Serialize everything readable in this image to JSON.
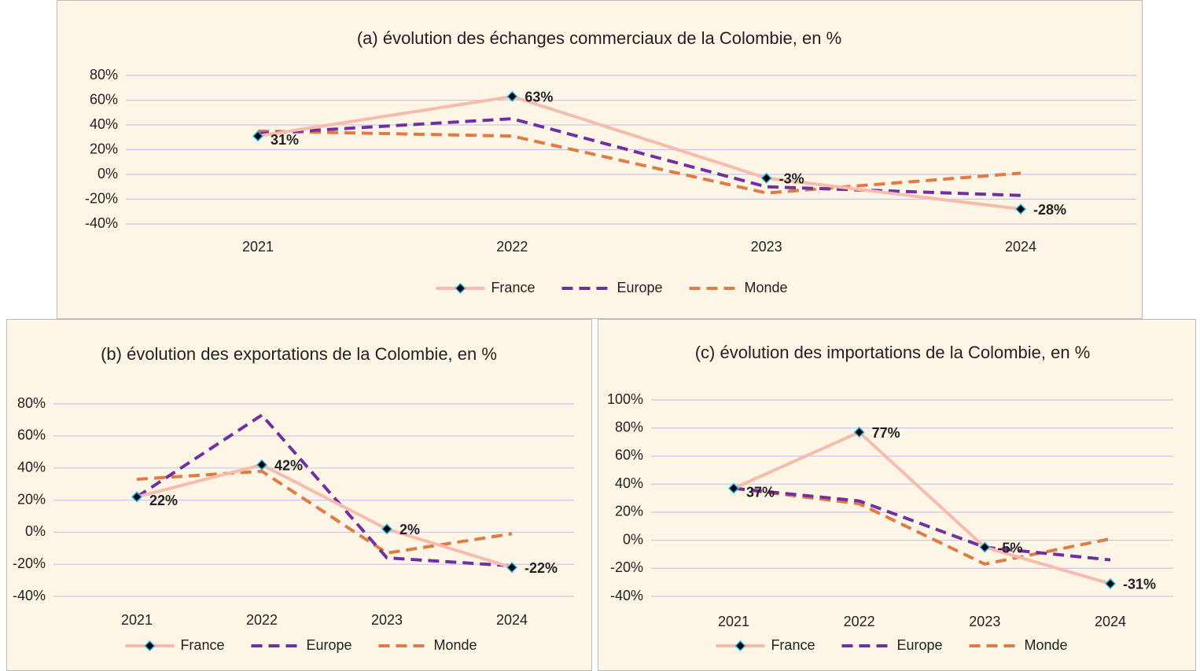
{
  "chart_data": [
    {
      "type": "line",
      "title": "(a) évolution des échanges commerciaux de la Colombie, en %",
      "categories": [
        "2021",
        "2022",
        "2023",
        "2024"
      ],
      "series": [
        {
          "name": "France",
          "color": "#f7bcae",
          "values": [
            31,
            63,
            -3,
            -28
          ],
          "value_labels": [
            "31%",
            "63%",
            "-3%",
            "-28%"
          ]
        },
        {
          "name": "Europe",
          "color": "#7030a0",
          "values": [
            33,
            45,
            -10,
            -17
          ]
        },
        {
          "name": "Monde",
          "color": "#e07b45",
          "values": [
            35,
            31,
            -15,
            1
          ]
        }
      ],
      "ylim": [
        -40,
        80
      ],
      "yticks": [
        {
          "value": -40,
          "label": "-40%"
        },
        {
          "value": -20,
          "label": "-20%"
        },
        {
          "value": 0,
          "label": "0%"
        },
        {
          "value": 20,
          "label": "20%"
        },
        {
          "value": 40,
          "label": "40%"
        },
        {
          "value": 60,
          "label": "60%"
        },
        {
          "value": 80,
          "label": "80%"
        }
      ],
      "grid": true,
      "legend": "bottom"
    },
    {
      "type": "line",
      "title": "(b) évolution des exportations de la Colombie, en %",
      "categories": [
        "2021",
        "2022",
        "2023",
        "2024"
      ],
      "series": [
        {
          "name": "France",
          "color": "#f7bcae",
          "values": [
            22,
            42,
            2,
            -22
          ],
          "value_labels": [
            "22%",
            "42%",
            "2%",
            "-22%"
          ]
        },
        {
          "name": "Europe",
          "color": "#7030a0",
          "values": [
            22,
            73,
            -16,
            -21
          ]
        },
        {
          "name": "Monde",
          "color": "#e07b45",
          "values": [
            33,
            38,
            -13,
            -1
          ]
        }
      ],
      "ylim": [
        -40,
        80
      ],
      "yticks": [
        {
          "value": -40,
          "label": "-40%"
        },
        {
          "value": -20,
          "label": "-20%"
        },
        {
          "value": 0,
          "label": "0%"
        },
        {
          "value": 20,
          "label": "20%"
        },
        {
          "value": 40,
          "label": "40%"
        },
        {
          "value": 60,
          "label": "60%"
        },
        {
          "value": 80,
          "label": "80%"
        }
      ],
      "grid": true,
      "legend": "bottom"
    },
    {
      "type": "line",
      "title": "(c) évolution des importations de la Colombie, en %",
      "categories": [
        "2021",
        "2022",
        "2023",
        "2024"
      ],
      "series": [
        {
          "name": "France",
          "color": "#f7bcae",
          "values": [
            37,
            77,
            -5,
            -31
          ],
          "value_labels": [
            "37%",
            "77%",
            "-5%",
            "-31%"
          ]
        },
        {
          "name": "Europe",
          "color": "#7030a0",
          "values": [
            37,
            28,
            -5,
            -14
          ]
        },
        {
          "name": "Monde",
          "color": "#e07b45",
          "values": [
            37,
            26,
            -17,
            1
          ]
        }
      ],
      "ylim": [
        -40,
        100
      ],
      "yticks": [
        {
          "value": -40,
          "label": "-40%"
        },
        {
          "value": -20,
          "label": "-20%"
        },
        {
          "value": 0,
          "label": "0%"
        },
        {
          "value": 20,
          "label": "20%"
        },
        {
          "value": 40,
          "label": "40%"
        },
        {
          "value": 60,
          "label": "60%"
        },
        {
          "value": 80,
          "label": "80%"
        },
        {
          "value": 100,
          "label": "100%"
        }
      ],
      "grid": true,
      "legend": "bottom"
    }
  ]
}
